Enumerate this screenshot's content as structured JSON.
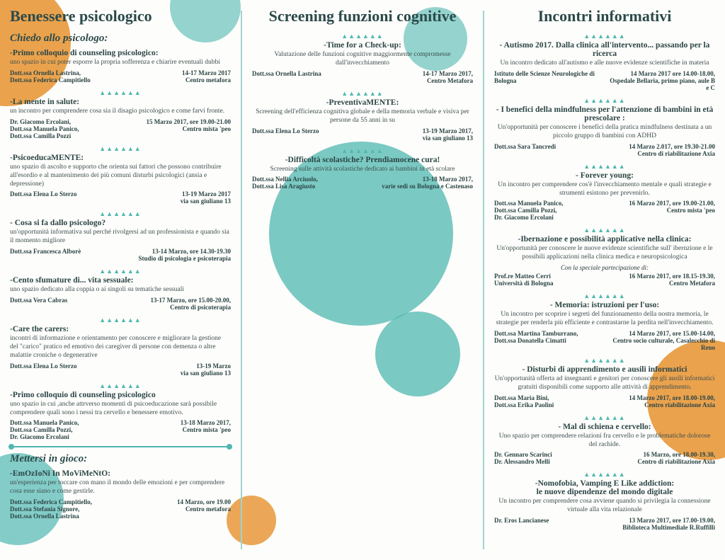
{
  "columns": {
    "left": {
      "title": "Benessere psicologico",
      "section1": "Chiedo allo psicologo:",
      "events1": [
        {
          "title": "-Primo colloquio di counseling psicologico:",
          "desc": "uno spazio in cui poter esporre la propria sofferenza e chiarire eventuali dubbi",
          "who": "Dott.ssa Ornella Lastrina,\nDott.ssa Federica Campitiello",
          "when": "14-17 Marzo 2017\nCentro metafora"
        },
        {
          "title": "-La mente in salute:",
          "desc": "un incontro per comprendere cosa sia il disagio psicologico e come farvi fronte.",
          "who": "Dr. Giacomo Ercolani,\nDott.ssa Manuela Panico,\nDott.ssa Camilla Pozzi",
          "when": "15 Marzo 2017, ore 19.00-21.00\nCentro mista 'peo"
        },
        {
          "title": "-PsicoeducaMENTE:",
          "desc": "uno spazio di ascolto e supporto che orienta sui fattori che possono contribuire all'esordio e al mantenimento dei più comuni disturbi psicologici (ansia e depressione)",
          "who": "Dott.ssa Elena Lo Sterzo",
          "when": "13-19 Marzo 2017\nvia san giuliano 13"
        },
        {
          "title": "- Cosa si fa dallo psicologo?",
          "desc": "un'opportunità informativa sul perché rivolgersi ad un professionista e quando sia il momento migliore",
          "who": "Dott.ssa Francesca Alborè",
          "when": "13-14 Marzo, ore 14.30-19.30\nStudio di psicologia e psicoterapia"
        },
        {
          "title": "-Cento sfumature di... vita sessuale:",
          "desc": "uno spazio dedicato alla coppia o ai singoli su tematiche sessuali",
          "who": "Dott.ssa Vera Cabras",
          "when": "13-17 Marzo, ore 15.00-20.00,\nCentro di psicoterapia"
        },
        {
          "title": "-Care the carers:",
          "desc": "incontri di informazione e orientamento per conoscere e migliorare la gestione del \"carico\" pratico ed emotivo dei caregiver di persone con demenza o altre malattie croniche o degenerative",
          "who": "Dott.ssa Elena Lo Sterzo",
          "when": "13-19 Marzo\nvia san giuliano 13"
        },
        {
          "title": "-Primo colloquio di counseling psicologico",
          "desc": "uno spazio in cui ,anche attrverso momenti di psicoeducazione sarà possibile comprendere quali sono i nessi tra cervello e benessere emotivo.",
          "who": "Dott.ssa Manuela Panico,\nDott.ssa Camilla Pozzi,\nDr. Giacomo Ercolani",
          "when": "13-18 Marzo 2017,\nCentro mista 'peo"
        }
      ],
      "section2": "Mettersi in gioco:",
      "events2": [
        {
          "title": "-EmOzIoNi In MoViMeNtO:",
          "desc": "un'esperienza per toccare con mano il mondo delle emozioni e per comprendere cosa esse siano e come gestirle.",
          "who": "Dott.ssa Federica Campitiello,\nDott.ssa Stefania Signore,\nDott.ssa Ornella Lastrina",
          "when": "14 Marzo, ore 19.00\nCentro metafora"
        }
      ]
    },
    "center": {
      "title": "Screening funzioni cognitive",
      "events": [
        {
          "title": "-Time for a Check-up:",
          "desc": "Valutazione delle funzioni cognitive maggiormente compromesse dall'invecchiamento",
          "who": "Dott.ssa Ornella Lastrina",
          "when": "14-17 Marzo 2017,\nCentro Metafora"
        },
        {
          "title": "-PreventivaMENTE:",
          "desc": "Screening dell'efficienza cognitiva globale e della memoria verbale e visiva per persone da 55 anni in su",
          "who": "Dott.ssa Elena Lo Sterzo",
          "when": "13-19 Marzo 2017,\nvia san giuliano 13"
        },
        {
          "title": "-Difficoltà scolastiche? Prendiamocene cura!",
          "desc": "Screening sulle attività scolastiche dedicato ai bambini in età scolare",
          "who": "Dott.ssa Nellia Arciuolo,\nDott.ssa Lisa Aragiusto",
          "when": "13-18 Marzo 2017,\nvarie sedi su Bologna e Castenaso"
        }
      ]
    },
    "right": {
      "title": "Incontri informativi",
      "events": [
        {
          "title": "- Autismo 2017. Dalla clinica all'intervento... passando per la ricerca",
          "desc": "Un incontro dedicato all'autismo e alle nuove evidenze scientifiche in materia",
          "who": "Istituto delle Scienze Neurologiche di Bologna",
          "when": "14 Marzo 2017 ore 14.00-18.00, Ospedale Bellaria, primo piano, aule B e C"
        },
        {
          "title": "- I benefici della mindfulness per l'attenzione di bambini in età prescolare :",
          "desc": "Un'opportunità per conoscere i benefici della pratica mindfulness destinata a un piccolo gruppo di bambini con ADHD",
          "who": "Dott.ssa Sara Tancredi",
          "when": "14 Marzo 2.017, ore 19.30-21.00\nCentro di riabilitazione Axia"
        },
        {
          "title": "- Forever young:",
          "desc": "Un incontro per comprendere cos'è l'invecchiamento mentale e quali strategie e strumenti esistono per prevenirlo.",
          "who": "Dott.ssa Manuela Panico,\nDott.ssa Camilla Pozzi,\nDr. Giacomo Ercolani",
          "when": "16 Marzo 2017, ore 19.00-21.00,\nCentro mista 'peo"
        },
        {
          "title": "-Ibernazione e possibilità applicative nella clinica:",
          "desc": "Un'opportunità per conoscere le nuove evidenze scientifiche sull' ibernzione e le possibili applicazioni nella clinica medica e neuropsicologica",
          "extra": "Con la speciale partecipazione di:",
          "who": "Prof.re Matteo Cerri\nUniversità di Bologna",
          "when": "16 Marzo 2017, ore 18.15-19.30,\nCentro Metafora"
        },
        {
          "title": "- Memoria: istruzioni per l'uso:",
          "desc": "Un incontro per scoprire i segreti del funzionamento della nostra memoria, le strategie per renderla più efficiente e contrastarne la perdita nell'invecchiamento.",
          "who": "Dott.ssa Martina Tamburrano,\nDott.ssa Donatella Cimatti",
          "when": "14 Marzo 2017, ore 15.00-14.00,\nCentro socio culturale, Casalecchio di Reno"
        },
        {
          "title": "- Disturbi di apprendimento e ausili informatici",
          "desc": "Un'opportunità offerta ad insegnanti e genitori per conoscere gli ausili informatici gratuiti disponibili come supporto alle attività di apprendimento.",
          "who": "Dott.ssa Maria Bini,\nDott.ssa Erika Paolini",
          "when": "14 Marzo 2017, ore 18.00-19.00,\nCentro riabilitazione Axia"
        },
        {
          "title": "- Mal di schiena e cervello:",
          "desc": "Uno spazio per comprendere relazioni fra cervello e le problematiche dolorose del rachide.",
          "who": "Dr. Gennaro Scarinci\nDr. Alessandro Melli",
          "when": "16 Marzo, ore 18.00-19.30,\nCentro di riabilitazione Axia"
        },
        {
          "title": "-Nomofobia, Vamping E Like addiction:\nle nuove dipendenze del mondo digitale",
          "desc": "Un incontro per comprendere cosa avviene quando si privilegia la connessione virtuale alla vita relazionale",
          "who": "Dr. Eros Lancianese",
          "when": "13 Marzo 2017, ore 17.00-19.00,\nBiblioteca Multimediale R.Ruffilli"
        }
      ]
    }
  },
  "sep": "▲▲▲▲▲▲"
}
